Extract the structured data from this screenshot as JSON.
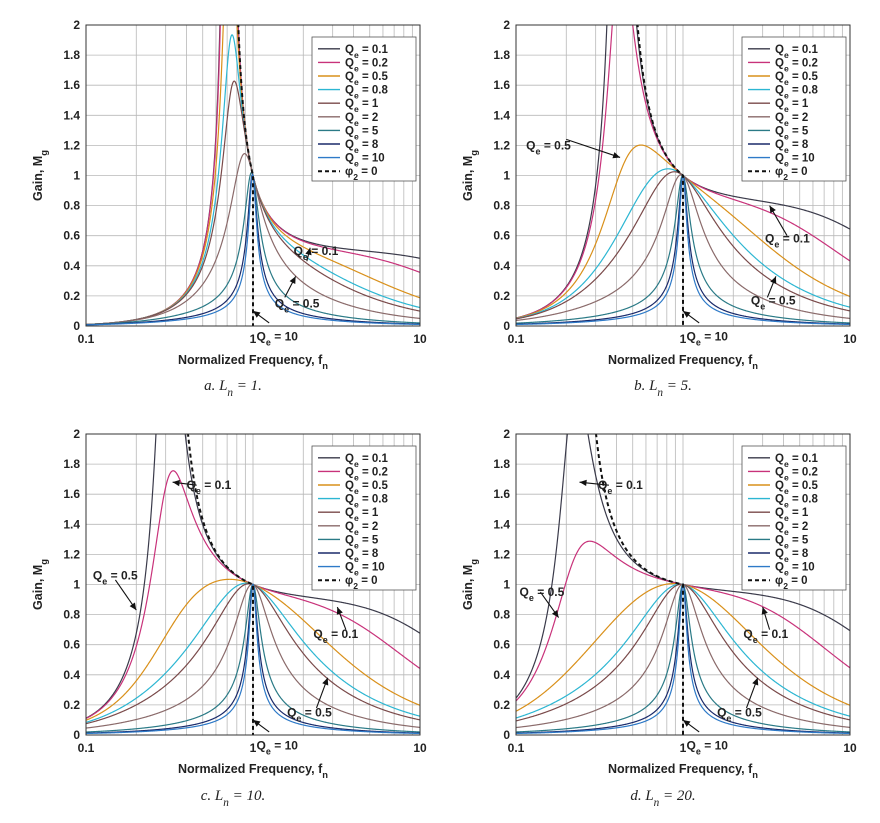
{
  "figure": {
    "panels_order": [
      "a",
      "b",
      "c",
      "d"
    ]
  },
  "chart_data": [
    {
      "type": "line",
      "panel": "a",
      "caption_prefix": "a. L",
      "caption_sub": "n",
      "caption_suffix": " = 1.",
      "ln": 1,
      "xlabel": "Normalized Frequency, f",
      "xlabel_sub": "n",
      "ylabel": "Gain, M",
      "ylabel_sub": "g",
      "x_scale": "log",
      "xlim": [
        0.1,
        10
      ],
      "ylim": [
        0,
        2
      ],
      "x_ticks": [
        "0.1",
        "1",
        "10"
      ],
      "y_ticks": [
        "0",
        "0.2",
        "0.4",
        "0.6",
        "0.8",
        "1",
        "1.2",
        "1.4",
        "1.6",
        "1.8",
        "2"
      ],
      "grid": true,
      "legend_position": "top-right",
      "series": [
        {
          "name": "Qe = 0.1",
          "q": 0.1,
          "color": "#3a3a4a"
        },
        {
          "name": "Qe = 0.2",
          "q": 0.2,
          "color": "#c8327a"
        },
        {
          "name": "Qe = 0.5",
          "q": 0.5,
          "color": "#d9901a"
        },
        {
          "name": "Qe = 0.8",
          "q": 0.8,
          "color": "#2cb6d2"
        },
        {
          "name": "Qe = 1",
          "q": 1,
          "color": "#7a4a4a"
        },
        {
          "name": "Qe = 2",
          "q": 2,
          "color": "#8a6a6a"
        },
        {
          "name": "Qe = 5",
          "q": 5,
          "color": "#2a7a86"
        },
        {
          "name": "Qe = 8",
          "q": 8,
          "color": "#1a2a6a"
        },
        {
          "name": "Qe = 10",
          "q": 10,
          "color": "#2e7ac8"
        }
      ],
      "phi_series": {
        "name": "φ2 = 0",
        "color": "#111111"
      },
      "annotations": [
        {
          "text": "Qe = 0.1",
          "fx": 2.1,
          "fy": 0.43,
          "tx": 1.75,
          "ty": 0.5,
          "ax": 2.2,
          "ay": 0.52
        },
        {
          "text": "Qe = 0.5",
          "fx": 1.55,
          "fy": 0.19,
          "tx": 1.35,
          "ty": 0.15,
          "ax": 1.8,
          "ay": 0.33
        },
        {
          "text": "Qe = 10",
          "fx": 1.25,
          "fy": 0.02,
          "tx": 1.05,
          "ty": -0.07,
          "ax": 1.0,
          "ay": 0.1
        }
      ]
    },
    {
      "type": "line",
      "panel": "b",
      "caption_prefix": "b. L",
      "caption_sub": "n",
      "caption_suffix": " = 5.",
      "ln": 5,
      "xlabel": "Normalized Frequency, f",
      "xlabel_sub": "n",
      "ylabel": "Gain, M",
      "ylabel_sub": "g",
      "x_scale": "log",
      "xlim": [
        0.1,
        10
      ],
      "ylim": [
        0,
        2
      ],
      "x_ticks": [
        "0.1",
        "1",
        "10"
      ],
      "y_ticks": [
        "0",
        "0.2",
        "0.4",
        "0.6",
        "0.8",
        "1",
        "1.2",
        "1.4",
        "1.6",
        "1.8",
        "2"
      ],
      "grid": true,
      "legend_position": "top-right",
      "series": [
        {
          "name": "Qe = 0.1",
          "q": 0.1,
          "color": "#3a3a4a"
        },
        {
          "name": "Qe = 0.2",
          "q": 0.2,
          "color": "#c8327a"
        },
        {
          "name": "Qe = 0.5",
          "q": 0.5,
          "color": "#d9901a"
        },
        {
          "name": "Qe = 0.8",
          "q": 0.8,
          "color": "#2cb6d2"
        },
        {
          "name": "Qe = 1",
          "q": 1,
          "color": "#7a4a4a"
        },
        {
          "name": "Qe = 2",
          "q": 2,
          "color": "#8a6a6a"
        },
        {
          "name": "Qe = 5",
          "q": 5,
          "color": "#2a7a86"
        },
        {
          "name": "Qe = 8",
          "q": 8,
          "color": "#1a2a6a"
        },
        {
          "name": "Qe = 10",
          "q": 10,
          "color": "#2e7ac8"
        }
      ],
      "phi_series": {
        "name": "φ2 = 0",
        "color": "#111111"
      },
      "annotations": [
        {
          "text": "Qe = 0.5",
          "fx": 0.2,
          "fy": 1.24,
          "tx": 0.115,
          "ty": 1.2,
          "ax": 0.42,
          "ay": 1.12
        },
        {
          "text": "Qe = 0.1",
          "fx": 4.2,
          "fy": 0.6,
          "tx": 3.1,
          "ty": 0.58,
          "ax": 3.3,
          "ay": 0.8
        },
        {
          "text": "Qe = 0.5",
          "fx": 3.2,
          "fy": 0.19,
          "tx": 2.55,
          "ty": 0.17,
          "ax": 3.6,
          "ay": 0.33
        },
        {
          "text": "Qe = 10",
          "fx": 1.25,
          "fy": 0.02,
          "tx": 1.05,
          "ty": -0.07,
          "ax": 1.0,
          "ay": 0.1
        }
      ]
    },
    {
      "type": "line",
      "panel": "c",
      "caption_prefix": "c. L",
      "caption_sub": "n",
      "caption_suffix": " = 10.",
      "ln": 10,
      "xlabel": "Normalized Frequency, f",
      "xlabel_sub": "n",
      "ylabel": "Gain, M",
      "ylabel_sub": "g",
      "x_scale": "log",
      "xlim": [
        0.1,
        10
      ],
      "ylim": [
        0,
        2
      ],
      "x_ticks": [
        "0.1",
        "1",
        "10"
      ],
      "y_ticks": [
        "0",
        "0.2",
        "0.4",
        "0.6",
        "0.8",
        "1",
        "1.2",
        "1.4",
        "1.6",
        "1.8",
        "2"
      ],
      "grid": true,
      "legend_position": "top-right",
      "series": [
        {
          "name": "Qe = 0.1",
          "q": 0.1,
          "color": "#3a3a4a"
        },
        {
          "name": "Qe = 0.2",
          "q": 0.2,
          "color": "#c8327a"
        },
        {
          "name": "Qe = 0.5",
          "q": 0.5,
          "color": "#d9901a"
        },
        {
          "name": "Qe = 0.8",
          "q": 0.8,
          "color": "#2cb6d2"
        },
        {
          "name": "Qe = 1",
          "q": 1,
          "color": "#7a4a4a"
        },
        {
          "name": "Qe = 2",
          "q": 2,
          "color": "#8a6a6a"
        },
        {
          "name": "Qe = 5",
          "q": 5,
          "color": "#2a7a86"
        },
        {
          "name": "Qe = 8",
          "q": 8,
          "color": "#1a2a6a"
        },
        {
          "name": "Qe = 10",
          "q": 10,
          "color": "#2e7ac8"
        }
      ],
      "phi_series": {
        "name": "φ2 = 0",
        "color": "#111111"
      },
      "annotations": [
        {
          "text": "Qe = 0.1",
          "fx": 0.46,
          "fy": 1.66,
          "tx": 0.4,
          "ty": 1.66,
          "ax": 0.33,
          "ay": 1.68
        },
        {
          "text": "Qe = 0.5",
          "fx": 0.15,
          "fy": 1.03,
          "tx": 0.11,
          "ty": 1.06,
          "ax": 0.2,
          "ay": 0.83
        },
        {
          "text": "Qe = 0.1",
          "fx": 3.6,
          "fy": 0.7,
          "tx": 2.3,
          "ty": 0.67,
          "ax": 3.2,
          "ay": 0.85
        },
        {
          "text": "Qe = 0.5",
          "fx": 2.4,
          "fy": 0.18,
          "tx": 1.6,
          "ty": 0.15,
          "ax": 2.8,
          "ay": 0.38
        },
        {
          "text": "Qe = 10",
          "fx": 1.25,
          "fy": 0.02,
          "tx": 1.05,
          "ty": -0.07,
          "ax": 1.0,
          "ay": 0.1
        }
      ]
    },
    {
      "type": "line",
      "panel": "d",
      "caption_prefix": "d. L",
      "caption_sub": "n",
      "caption_suffix": " = 20.",
      "ln": 20,
      "xlabel": "Normalized Frequency, f",
      "xlabel_sub": "n",
      "ylabel": "Gain, M",
      "ylabel_sub": "g",
      "x_scale": "log",
      "xlim": [
        0.1,
        10
      ],
      "ylim": [
        0,
        2
      ],
      "x_ticks": [
        "0.1",
        "1",
        "10"
      ],
      "y_ticks": [
        "0",
        "0.2",
        "0.4",
        "0.6",
        "0.8",
        "1",
        "1.2",
        "1.4",
        "1.6",
        "1.8",
        "2"
      ],
      "grid": true,
      "legend_position": "top-right",
      "series": [
        {
          "name": "Qe = 0.1",
          "q": 0.1,
          "color": "#3a3a4a"
        },
        {
          "name": "Qe = 0.2",
          "q": 0.2,
          "color": "#c8327a"
        },
        {
          "name": "Qe = 0.5",
          "q": 0.5,
          "color": "#d9901a"
        },
        {
          "name": "Qe = 0.8",
          "q": 0.8,
          "color": "#2cb6d2"
        },
        {
          "name": "Qe = 1",
          "q": 1,
          "color": "#7a4a4a"
        },
        {
          "name": "Qe = 2",
          "q": 2,
          "color": "#8a6a6a"
        },
        {
          "name": "Qe = 5",
          "q": 5,
          "color": "#2a7a86"
        },
        {
          "name": "Qe = 8",
          "q": 8,
          "color": "#1a2a6a"
        },
        {
          "name": "Qe = 10",
          "q": 10,
          "color": "#2e7ac8"
        }
      ],
      "phi_series": {
        "name": "φ2 = 0",
        "color": "#111111"
      },
      "annotations": [
        {
          "text": "Qe = 0.1",
          "fx": 0.36,
          "fy": 1.66,
          "tx": 0.31,
          "ty": 1.66,
          "ax": 0.24,
          "ay": 1.68
        },
        {
          "text": "Qe = 0.5",
          "fx": 0.14,
          "fy": 0.95,
          "tx": 0.105,
          "ty": 0.95,
          "ax": 0.18,
          "ay": 0.78
        },
        {
          "text": "Qe = 0.1",
          "fx": 3.3,
          "fy": 0.7,
          "tx": 2.3,
          "ty": 0.67,
          "ax": 3.0,
          "ay": 0.85
        },
        {
          "text": "Qe = 0.5",
          "fx": 2.4,
          "fy": 0.18,
          "tx": 1.6,
          "ty": 0.15,
          "ax": 2.8,
          "ay": 0.38
        },
        {
          "text": "Qe = 10",
          "fx": 1.25,
          "fy": 0.02,
          "tx": 1.05,
          "ty": -0.07,
          "ax": 1.0,
          "ay": 0.1
        }
      ]
    }
  ]
}
